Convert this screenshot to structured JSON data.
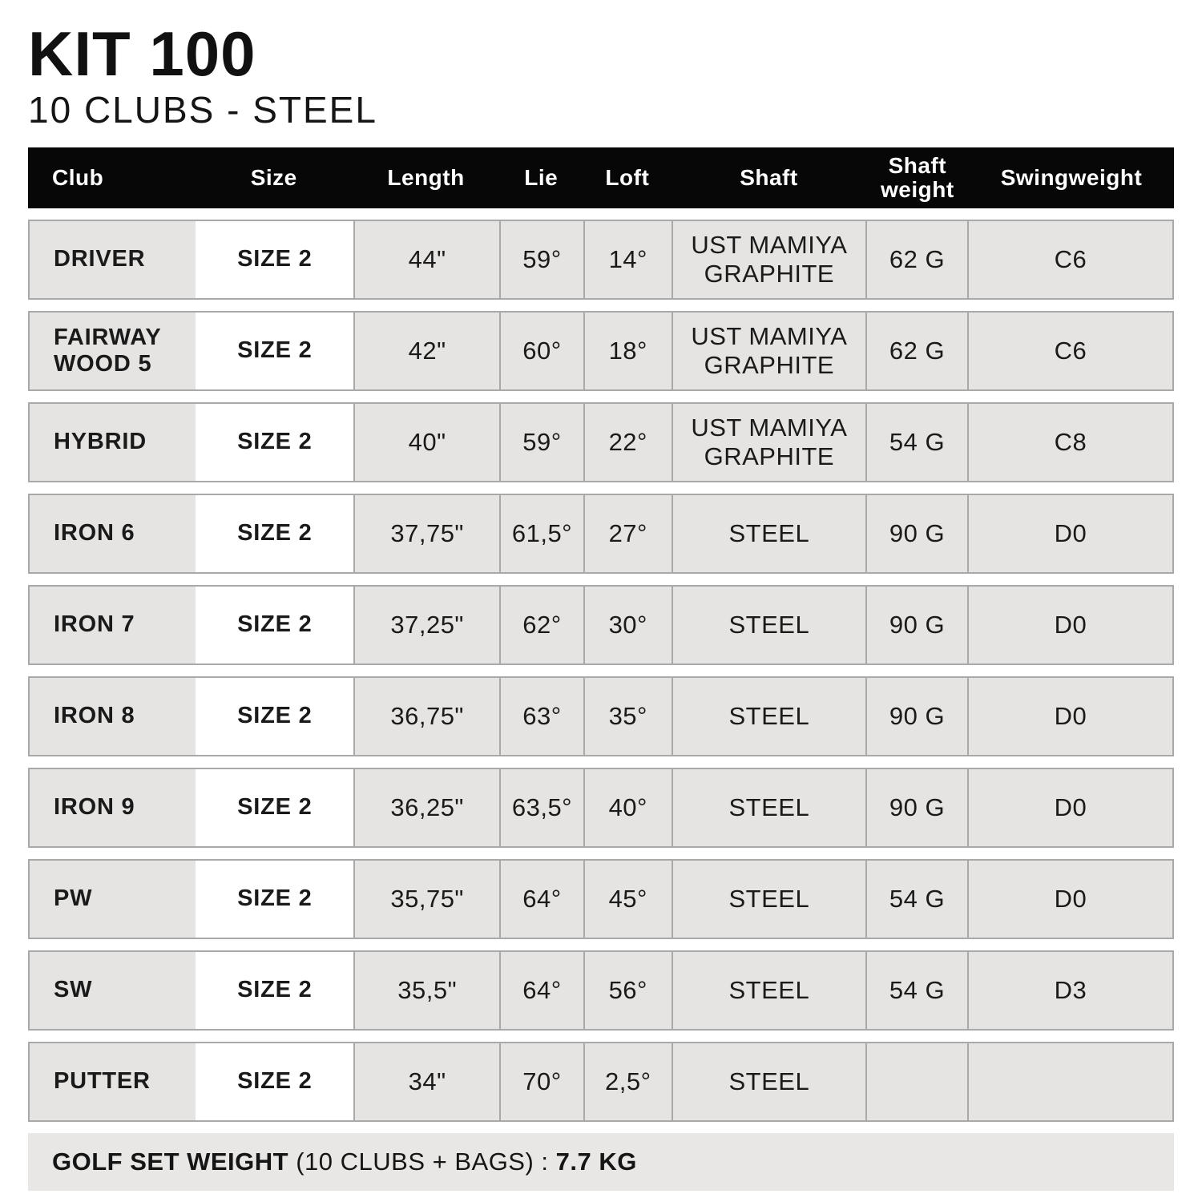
{
  "title": "KIT 100",
  "subtitle": "10 CLUBS - STEEL",
  "table": {
    "columns": [
      "Club",
      "Size",
      "Length",
      "Lie",
      "Loft",
      "Shaft",
      "Shaft weight",
      "Swingweight"
    ],
    "rows": [
      [
        "DRIVER",
        "SIZE 2",
        "44\"",
        "59°",
        "14°",
        "UST MAMIYA GRAPHITE",
        "62 G",
        "C6"
      ],
      [
        "FAIRWAY WOOD 5",
        "SIZE 2",
        "42\"",
        "60°",
        "18°",
        "UST MAMIYA GRAPHITE",
        "62 G",
        "C6"
      ],
      [
        "HYBRID",
        "SIZE 2",
        "40\"",
        "59°",
        "22°",
        "UST MAMIYA GRAPHITE",
        "54 G",
        "C8"
      ],
      [
        "IRON 6",
        "SIZE 2",
        "37,75\"",
        "61,5°",
        "27°",
        "STEEL",
        "90 G",
        "D0"
      ],
      [
        "IRON 7",
        "SIZE 2",
        "37,25\"",
        "62°",
        "30°",
        "STEEL",
        "90 G",
        "D0"
      ],
      [
        "IRON 8",
        "SIZE 2",
        "36,75\"",
        "63°",
        "35°",
        "STEEL",
        "90 G",
        "D0"
      ],
      [
        "IRON 9",
        "SIZE 2",
        "36,25\"",
        "63,5°",
        "40°",
        "STEEL",
        "90 G",
        "D0"
      ],
      [
        "PW",
        "SIZE 2",
        "35,75\"",
        "64°",
        "45°",
        "STEEL",
        "54 G",
        "D0"
      ],
      [
        "SW",
        "SIZE 2",
        "35,5\"",
        "64°",
        "56°",
        "STEEL",
        "54 G",
        "D3"
      ],
      [
        "PUTTER",
        "SIZE 2",
        "34\"",
        "70°",
        "2,5°",
        "STEEL",
        "",
        ""
      ]
    ]
  },
  "footer": {
    "label": "GOLF SET WEIGHT",
    "middle": " (10 CLUBS + BAGS) : ",
    "value": "7.7 KG"
  },
  "colors": {
    "header_bg": "#070707",
    "header_text": "#ffffff",
    "cell_bg": "#e6e4e2",
    "size_cell_bg": "#ffffff",
    "border": "#a9a9a9",
    "footer_bg": "#e9e7e5"
  }
}
